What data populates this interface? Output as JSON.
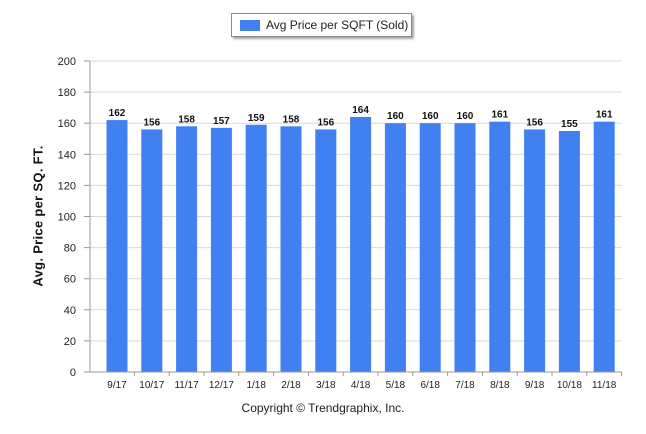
{
  "legend": {
    "label": "Avg Price per SQFT (Sold)"
  },
  "copyright": "Copyright © Trendgraphix, Inc.",
  "colors": {
    "bar": "#4080f0",
    "grid": "#d9d9d9",
    "axis": "#999999"
  },
  "chart_data": {
    "type": "bar",
    "title": "",
    "xlabel": "",
    "ylabel": "Avg. Price per SQ. FT.",
    "ylim": [
      0,
      200
    ],
    "yticks": [
      0,
      20,
      40,
      60,
      80,
      100,
      120,
      140,
      160,
      180,
      200
    ],
    "grid": true,
    "legend_position": "top-center",
    "categories": [
      "9/17",
      "10/17",
      "11/17",
      "12/17",
      "1/18",
      "2/18",
      "3/18",
      "4/18",
      "5/18",
      "6/18",
      "7/18",
      "8/18",
      "9/18",
      "10/18",
      "11/18"
    ],
    "series": [
      {
        "name": "Avg Price per SQFT (Sold)",
        "values": [
          162,
          156,
          158,
          157,
          159,
          158,
          156,
          164,
          160,
          160,
          160,
          161,
          156,
          155,
          161
        ]
      }
    ]
  }
}
